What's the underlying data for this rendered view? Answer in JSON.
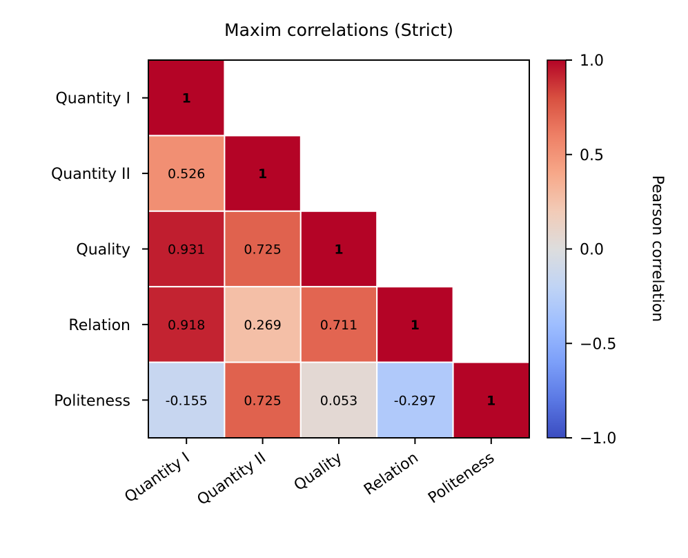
{
  "chart_data": {
    "type": "heatmap",
    "title": "Maxim correlations (Strict)",
    "categories": [
      "Quantity I",
      "Quantity II",
      "Quality",
      "Relation",
      "Politeness"
    ],
    "matrix": [
      [
        1,
        null,
        null,
        null,
        null
      ],
      [
        0.526,
        1,
        null,
        null,
        null
      ],
      [
        0.931,
        0.725,
        1,
        null,
        null
      ],
      [
        0.918,
        0.269,
        0.711,
        1,
        null
      ],
      [
        -0.155,
        0.725,
        0.053,
        -0.297,
        1
      ]
    ],
    "cell_labels": [
      [
        "1",
        "",
        "",
        "",
        ""
      ],
      [
        "0.526",
        "1",
        "",
        "",
        ""
      ],
      [
        "0.931",
        "0.725",
        "1",
        "",
        ""
      ],
      [
        "0.918",
        "0.269",
        "0.711",
        "1",
        ""
      ],
      [
        "-0.155",
        "0.725",
        "0.053",
        "-0.297",
        "1"
      ]
    ],
    "mask": "upper-triangle",
    "colormap": "coolwarm",
    "vmin": -1.0,
    "vmax": 1.0,
    "colorbar": {
      "label": "Pearson correlation",
      "ticks": [
        1.0,
        0.5,
        0.0,
        -0.5,
        -1.0
      ],
      "tick_labels": [
        "1.0",
        "0.5",
        "0.0",
        "−0.5",
        "−1.0"
      ]
    },
    "colors": {
      "cmap_low": "#3b4cc0",
      "cmap_mid": "#dddddd",
      "cmap_high": "#b40426",
      "cell_border": "#ffffff",
      "axes": "#000000"
    }
  }
}
